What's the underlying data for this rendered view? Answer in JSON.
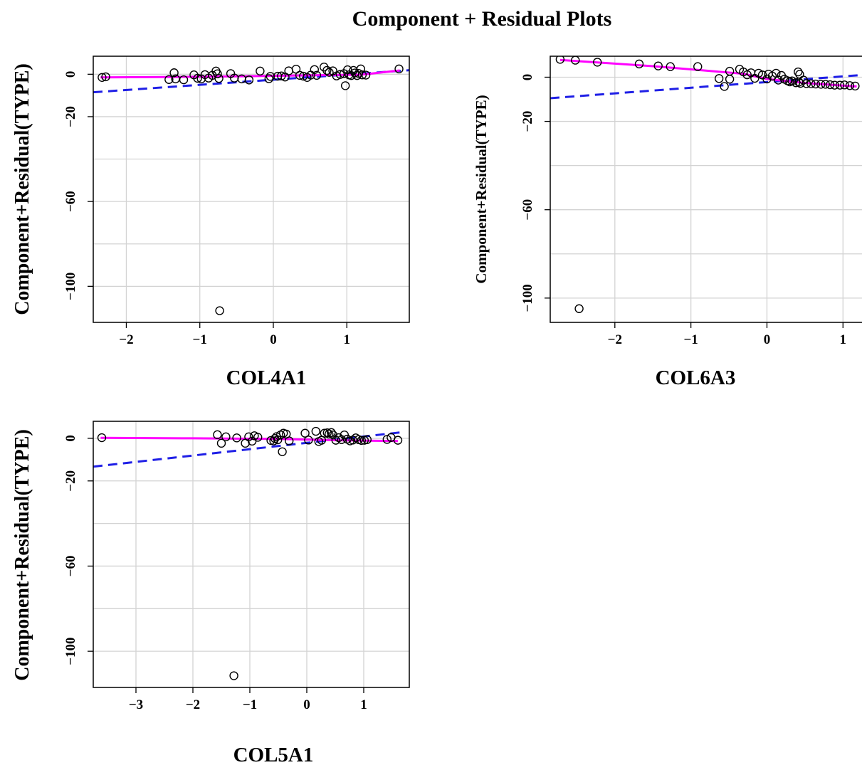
{
  "title": "Component + Residual Plots",
  "colors": {
    "points": "#000000",
    "linear_fit": "#1f1fe6",
    "smooth": "#ff00ff",
    "grid": "#d3d3d3"
  },
  "chart_data": [
    {
      "type": "scatter",
      "xlabel": "COL4A1",
      "ylabel": "Component+Residual(TYPE)",
      "xlim": [
        -2.45,
        1.85
      ],
      "ylim": [
        -117,
        8.5
      ],
      "xticks": [
        -2,
        -1,
        0,
        1
      ],
      "yticks": [
        0,
        -20,
        -60,
        -100
      ],
      "xgrid": [
        -2,
        -1,
        0,
        1
      ],
      "ygrid": [
        0,
        -20,
        -40,
        -60,
        -80,
        -100
      ],
      "linear_fit": [
        [
          -2.45,
          -8.5
        ],
        [
          1.85,
          1.9
        ]
      ],
      "smooth": [
        [
          -2.35,
          -1.5
        ],
        [
          -1.5,
          -1.3
        ],
        [
          -0.5,
          -1.0
        ],
        [
          0.3,
          -0.6
        ],
        [
          1.2,
          -0.2
        ],
        [
          1.72,
          1.8
        ]
      ],
      "points": [
        [
          -2.33,
          -1.5
        ],
        [
          -2.28,
          -1.2
        ],
        [
          -1.42,
          -2.5
        ],
        [
          -1.35,
          0.7
        ],
        [
          -1.33,
          -2.2
        ],
        [
          -1.22,
          -2.6
        ],
        [
          -1.08,
          -0.3
        ],
        [
          -1.03,
          -1.9
        ],
        [
          -0.98,
          -2.2
        ],
        [
          -0.93,
          -0.2
        ],
        [
          -0.88,
          -1.8
        ],
        [
          -0.83,
          -0.5
        ],
        [
          -0.78,
          1.5
        ],
        [
          -0.76,
          0.2
        ],
        [
          -0.74,
          -2.0
        ],
        [
          -0.58,
          0.3
        ],
        [
          -0.53,
          -1.8
        ],
        [
          -0.43,
          -2.2
        ],
        [
          -0.33,
          -2.7
        ],
        [
          -0.18,
          1.5
        ],
        [
          -0.06,
          -2.1
        ],
        [
          -0.04,
          -1.0
        ],
        [
          0.06,
          -0.9
        ],
        [
          0.11,
          -0.8
        ],
        [
          0.16,
          -1.3
        ],
        [
          0.21,
          1.6
        ],
        [
          0.31,
          2.4
        ],
        [
          0.36,
          -0.5
        ],
        [
          0.41,
          -0.9
        ],
        [
          0.46,
          -1.5
        ],
        [
          0.51,
          -0.4
        ],
        [
          0.56,
          2.2
        ],
        [
          0.59,
          -0.5
        ],
        [
          0.69,
          3.4
        ],
        [
          0.73,
          1.8
        ],
        [
          0.76,
          0.9
        ],
        [
          0.81,
          1.6
        ],
        [
          0.86,
          -0.8
        ],
        [
          0.91,
          -0.1
        ],
        [
          0.96,
          0.3
        ],
        [
          0.98,
          -5.4
        ],
        [
          1.01,
          2.1
        ],
        [
          1.03,
          -0.3
        ],
        [
          1.06,
          -0.6
        ],
        [
          1.09,
          1.8
        ],
        [
          1.11,
          0.6
        ],
        [
          1.14,
          -0.6
        ],
        [
          1.16,
          0.4
        ],
        [
          1.19,
          2.5
        ],
        [
          1.21,
          -0.3
        ],
        [
          1.26,
          -0.4
        ],
        [
          1.71,
          2.5
        ],
        [
          -0.73,
          -111.5
        ]
      ]
    },
    {
      "type": "scatter",
      "xlabel": "COL6A3",
      "ylabel": "Component+Residual(TYPE)",
      "xlim": [
        -2.85,
        1.25
      ],
      "ylim": [
        -111,
        9.5
      ],
      "xticks": [
        -2,
        -1,
        0,
        1
      ],
      "yticks": [
        0,
        -20,
        -60,
        -100
      ],
      "xgrid": [
        -2,
        -1,
        0,
        1
      ],
      "ygrid": [
        0,
        -20,
        -40,
        -60,
        -80,
        -100
      ],
      "linear_fit": [
        [
          -2.85,
          -9.5
        ],
        [
          1.25,
          1.0
        ]
      ],
      "smooth": [
        [
          -2.72,
          7.8
        ],
        [
          -1.5,
          5.0
        ],
        [
          -0.8,
          3.0
        ],
        [
          -0.3,
          1.5
        ],
        [
          0.0,
          -0.8
        ],
        [
          0.5,
          -2.6
        ],
        [
          1.0,
          -3.8
        ],
        [
          1.18,
          -4.2
        ]
      ],
      "points": [
        [
          -2.72,
          8.1
        ],
        [
          -2.52,
          7.7
        ],
        [
          -2.23,
          6.8
        ],
        [
          -1.68,
          6.0
        ],
        [
          -1.43,
          5.1
        ],
        [
          -1.27,
          4.8
        ],
        [
          -0.91,
          4.8
        ],
        [
          -0.63,
          -0.6
        ],
        [
          -0.56,
          -4.2
        ],
        [
          -0.49,
          -0.9
        ],
        [
          -0.49,
          2.7
        ],
        [
          -0.36,
          3.6
        ],
        [
          -0.31,
          2.4
        ],
        [
          -0.26,
          1.1
        ],
        [
          -0.21,
          2.0
        ],
        [
          -0.16,
          -0.5
        ],
        [
          -0.11,
          1.8
        ],
        [
          -0.06,
          1.0
        ],
        [
          0.0,
          -0.8
        ],
        [
          0.02,
          1.4
        ],
        [
          0.07,
          0.5
        ],
        [
          0.12,
          1.8
        ],
        [
          0.15,
          -1.3
        ],
        [
          0.19,
          0.8
        ],
        [
          0.23,
          -0.9
        ],
        [
          0.27,
          -1.6
        ],
        [
          0.3,
          -2.1
        ],
        [
          0.33,
          -1.7
        ],
        [
          0.38,
          -2.5
        ],
        [
          0.42,
          -2.2
        ],
        [
          0.44,
          -2.8
        ],
        [
          0.48,
          -1.3
        ],
        [
          0.52,
          -2.9
        ],
        [
          0.58,
          -3.0
        ],
        [
          0.64,
          -3.1
        ],
        [
          0.71,
          -3.2
        ],
        [
          0.77,
          -3.2
        ],
        [
          0.83,
          -3.4
        ],
        [
          0.89,
          -3.6
        ],
        [
          0.96,
          -3.6
        ],
        [
          1.02,
          -3.5
        ],
        [
          1.09,
          -3.8
        ],
        [
          1.16,
          -4.0
        ],
        [
          0.41,
          2.4
        ],
        [
          0.43,
          1.3
        ],
        [
          -2.47,
          -104.8
        ]
      ]
    },
    {
      "type": "scatter",
      "xlabel": "COL5A1",
      "ylabel": "Component+Residual(TYPE)",
      "xlim": [
        -3.75,
        1.8
      ],
      "ylim": [
        -117,
        8
      ],
      "xticks": [
        -3,
        -2,
        -1,
        0,
        1
      ],
      "yticks": [
        0,
        -20,
        -60,
        -100
      ],
      "xgrid": [
        -3,
        -2,
        -1,
        0,
        1
      ],
      "ygrid": [
        0,
        -20,
        -40,
        -60,
        -80,
        -100
      ],
      "linear_fit": [
        [
          -3.75,
          -13.3
        ],
        [
          1.65,
          2.8
        ]
      ],
      "smooth": [
        [
          -3.62,
          0.2
        ],
        [
          -2.0,
          0.0
        ],
        [
          -0.5,
          -0.3
        ],
        [
          0.5,
          -0.9
        ],
        [
          1.6,
          -1.3
        ]
      ],
      "points": [
        [
          -3.6,
          0.3
        ],
        [
          -1.57,
          1.7
        ],
        [
          -1.5,
          -2.3
        ],
        [
          -1.42,
          0.7
        ],
        [
          -1.23,
          0.2
        ],
        [
          -1.08,
          -2.3
        ],
        [
          -1.02,
          0.7
        ],
        [
          -0.96,
          -1.3
        ],
        [
          -0.92,
          1.2
        ],
        [
          -0.86,
          0.5
        ],
        [
          -0.63,
          -1.0
        ],
        [
          -0.58,
          -1.2
        ],
        [
          -0.56,
          -0.1
        ],
        [
          -0.53,
          0.8
        ],
        [
          -0.51,
          -0.7
        ],
        [
          -0.46,
          1.6
        ],
        [
          -0.43,
          -6.3
        ],
        [
          -0.41,
          2.4
        ],
        [
          -0.36,
          2.0
        ],
        [
          -0.31,
          -1.2
        ],
        [
          -0.03,
          2.4
        ],
        [
          0.03,
          -0.8
        ],
        [
          0.16,
          3.3
        ],
        [
          0.21,
          -1.5
        ],
        [
          0.26,
          -0.9
        ],
        [
          0.31,
          2.4
        ],
        [
          0.36,
          2.6
        ],
        [
          0.39,
          2.0
        ],
        [
          0.43,
          2.7
        ],
        [
          0.46,
          1.6
        ],
        [
          0.51,
          -0.9
        ],
        [
          0.56,
          0.3
        ],
        [
          0.61,
          -0.6
        ],
        [
          0.66,
          1.6
        ],
        [
          0.71,
          -0.4
        ],
        [
          0.76,
          -1.2
        ],
        [
          0.81,
          -0.8
        ],
        [
          0.86,
          0.2
        ],
        [
          0.91,
          -0.6
        ],
        [
          0.96,
          -1.0
        ],
        [
          1.01,
          -0.9
        ],
        [
          1.06,
          -0.6
        ],
        [
          1.41,
          -0.5
        ],
        [
          1.48,
          0.4
        ],
        [
          1.6,
          -0.9
        ],
        [
          -1.28,
          -111.5
        ]
      ]
    }
  ]
}
